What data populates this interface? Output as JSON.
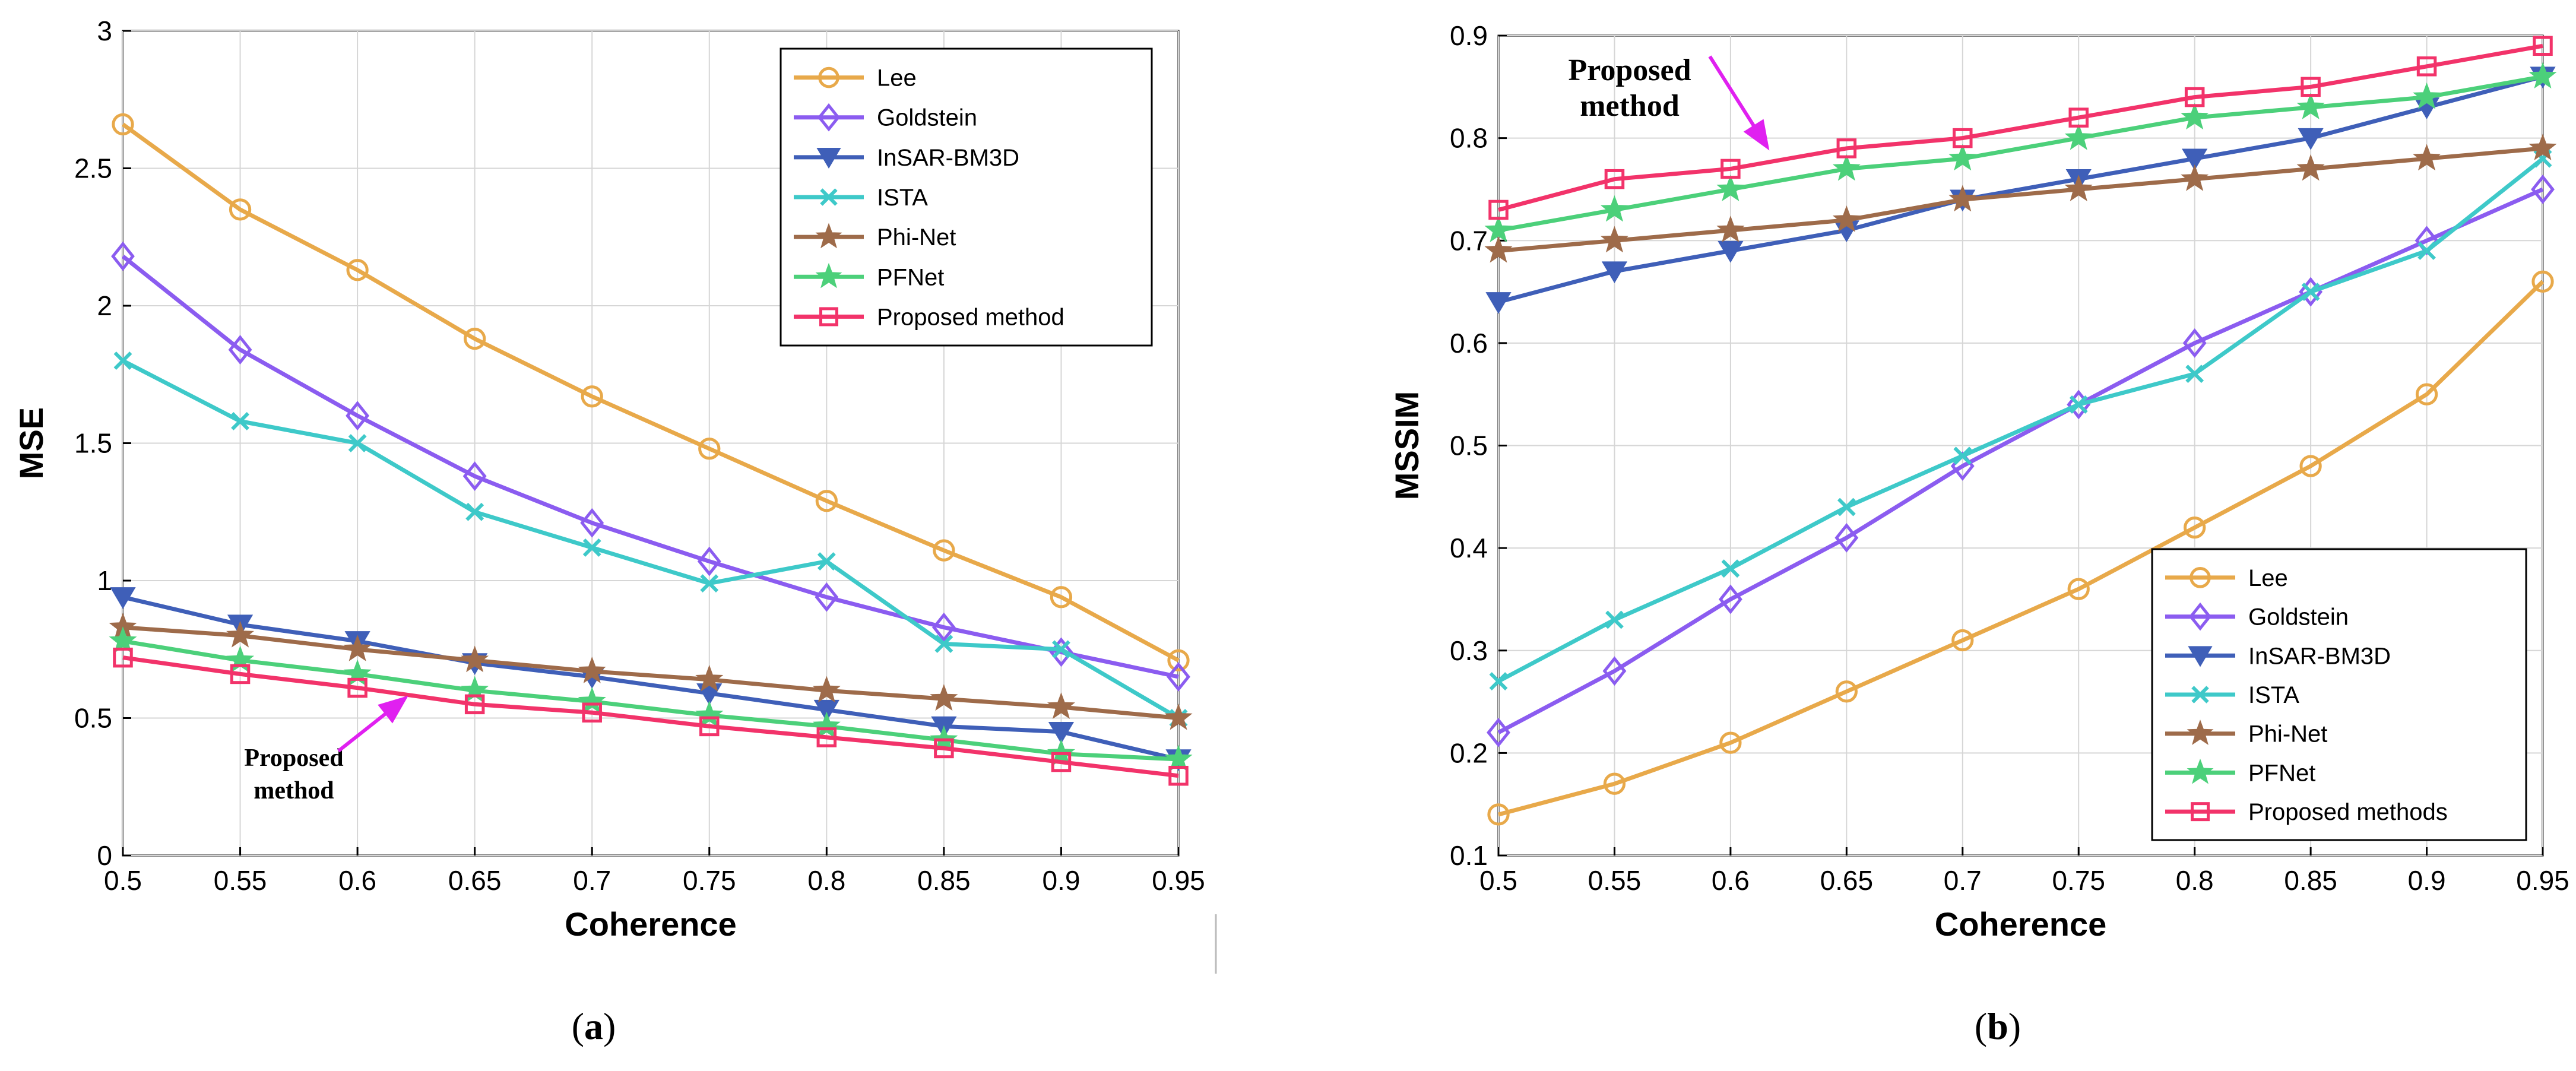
{
  "chart_data": [
    {
      "id": "a",
      "type": "line",
      "caption_letter": "a",
      "caption_open": "(",
      "caption_close": ")",
      "xlabel": "Coherence",
      "ylabel": "MSE",
      "xlim": [
        0.5,
        0.95
      ],
      "ylim": [
        0,
        3
      ],
      "xticks": [
        "0.5",
        "0.55",
        "0.6",
        "0.65",
        "0.7",
        "0.75",
        "0.8",
        "0.85",
        "0.9",
        "0.95"
      ],
      "yticks": [
        "0",
        "0.5",
        "1",
        "1.5",
        "2",
        "2.5",
        "3"
      ],
      "grid": true,
      "legend_position": "top-right",
      "x": [
        0.5,
        0.55,
        0.6,
        0.65,
        0.7,
        0.75,
        0.8,
        0.85,
        0.9,
        0.95
      ],
      "annotation": {
        "line1": "Proposed",
        "line2": "method"
      },
      "series": [
        {
          "name": "Lee",
          "color": "#e8a94a",
          "marker": "circle",
          "values": [
            2.66,
            2.35,
            2.13,
            1.88,
            1.67,
            1.48,
            1.29,
            1.11,
            0.94,
            0.71
          ]
        },
        {
          "name": "Goldstein",
          "color": "#8b5cf0",
          "marker": "diamond",
          "values": [
            2.18,
            1.84,
            1.6,
            1.38,
            1.21,
            1.07,
            0.94,
            0.83,
            0.74,
            0.65
          ]
        },
        {
          "name": "InSAR-BM3D",
          "color": "#3f5fb8",
          "marker": "triangle-down",
          "values": [
            0.94,
            0.84,
            0.78,
            0.7,
            0.65,
            0.59,
            0.53,
            0.47,
            0.45,
            0.35
          ]
        },
        {
          "name": "ISTA",
          "color": "#3ec9c9",
          "marker": "x",
          "values": [
            1.8,
            1.58,
            1.5,
            1.25,
            1.12,
            0.99,
            1.07,
            0.77,
            0.75,
            0.5
          ]
        },
        {
          "name": "Phi-Net",
          "color": "#9e6b4a",
          "marker": "star",
          "values": [
            0.83,
            0.8,
            0.75,
            0.71,
            0.67,
            0.64,
            0.6,
            0.57,
            0.54,
            0.5
          ]
        },
        {
          "name": "PFNet",
          "color": "#4cd07a",
          "marker": "star",
          "values": [
            0.78,
            0.71,
            0.66,
            0.6,
            0.56,
            0.51,
            0.47,
            0.42,
            0.37,
            0.35
          ]
        },
        {
          "name": "Proposed method",
          "color": "#f2336a",
          "marker": "square",
          "values": [
            0.72,
            0.66,
            0.61,
            0.55,
            0.52,
            0.47,
            0.43,
            0.39,
            0.34,
            0.29
          ]
        }
      ]
    },
    {
      "id": "b",
      "type": "line",
      "caption_letter": "b",
      "caption_open": "(",
      "caption_close": ")",
      "xlabel": "Coherence",
      "ylabel": "MSSIM",
      "xlim": [
        0.5,
        0.95
      ],
      "ylim": [
        0.1,
        0.9
      ],
      "xticks": [
        "0.5",
        "0.55",
        "0.6",
        "0.65",
        "0.7",
        "0.75",
        "0.8",
        "0.85",
        "0.9",
        "0.95"
      ],
      "yticks": [
        "0.1",
        "0.2",
        "0.3",
        "0.4",
        "0.5",
        "0.6",
        "0.7",
        "0.8",
        "0.9"
      ],
      "grid": true,
      "legend_position": "bottom-right",
      "x": [
        0.5,
        0.55,
        0.6,
        0.65,
        0.7,
        0.75,
        0.8,
        0.85,
        0.9,
        0.95
      ],
      "annotation": {
        "line1": "Proposed",
        "line2": "method"
      },
      "series": [
        {
          "name": "Lee",
          "color": "#e8a94a",
          "marker": "circle",
          "values": [
            0.14,
            0.17,
            0.21,
            0.26,
            0.31,
            0.36,
            0.42,
            0.48,
            0.55,
            0.66
          ]
        },
        {
          "name": "Goldstein",
          "color": "#8b5cf0",
          "marker": "diamond",
          "values": [
            0.22,
            0.28,
            0.35,
            0.41,
            0.48,
            0.54,
            0.6,
            0.65,
            0.7,
            0.75
          ]
        },
        {
          "name": "InSAR-BM3D",
          "color": "#3f5fb8",
          "marker": "triangle-down",
          "values": [
            0.64,
            0.67,
            0.69,
            0.71,
            0.74,
            0.76,
            0.78,
            0.8,
            0.83,
            0.86
          ]
        },
        {
          "name": "ISTA",
          "color": "#3ec9c9",
          "marker": "x",
          "values": [
            0.27,
            0.33,
            0.38,
            0.44,
            0.49,
            0.54,
            0.57,
            0.65,
            0.69,
            0.78
          ]
        },
        {
          "name": "Phi-Net",
          "color": "#9e6b4a",
          "marker": "star",
          "values": [
            0.69,
            0.7,
            0.71,
            0.72,
            0.74,
            0.75,
            0.76,
            0.77,
            0.78,
            0.79
          ]
        },
        {
          "name": "PFNet",
          "color": "#4cd07a",
          "marker": "star",
          "values": [
            0.71,
            0.73,
            0.75,
            0.77,
            0.78,
            0.8,
            0.82,
            0.83,
            0.84,
            0.86
          ]
        },
        {
          "name": "Proposed methods",
          "color": "#f2336a",
          "marker": "square",
          "values": [
            0.73,
            0.76,
            0.77,
            0.79,
            0.8,
            0.82,
            0.84,
            0.85,
            0.87,
            0.89
          ]
        }
      ]
    }
  ]
}
